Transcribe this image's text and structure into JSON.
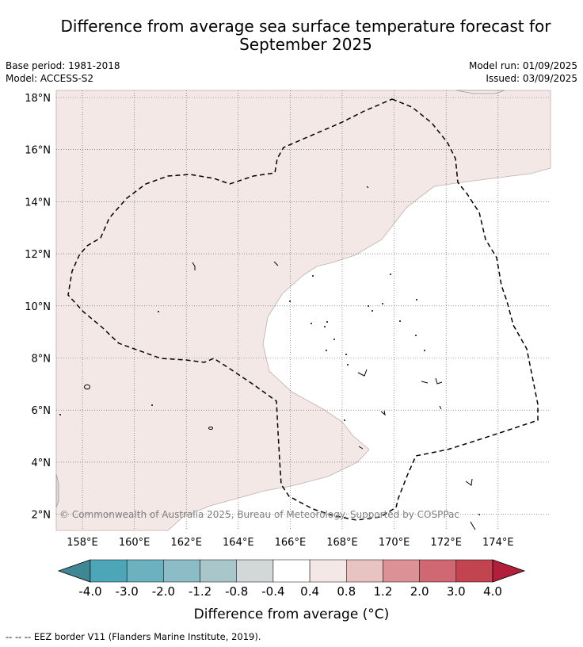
{
  "title": "Difference from average sea surface temperature forecast for September 2025",
  "meta": {
    "base_period": "Base period: 1981-2018",
    "model": "Model: ACCESS-S2",
    "model_run": "Model run: 01/09/2025",
    "issued": "Issued: 03/09/2025"
  },
  "map": {
    "lon_ticks": [
      "158°E",
      "160°E",
      "162°E",
      "164°E",
      "166°E",
      "168°E",
      "170°E",
      "172°E",
      "174°E"
    ],
    "lat_ticks": [
      "18°N",
      "16°N",
      "14°N",
      "12°N",
      "10°N",
      "8°N",
      "6°N",
      "4°N",
      "2°N"
    ],
    "watermark": "© Commonwealth of Australia 2025, Bureau of Meteorology. Supported by COSPPac",
    "colors": {
      "anomaly_0_4_to_0_8": "#f4e8e7",
      "neutral": "#ffffff",
      "eez_border": "#000000"
    }
  },
  "colorbar": {
    "tick_labels": [
      "-4.0",
      "-3.0",
      "-2.0",
      "-1.2",
      "-0.8",
      "-0.4",
      "0.4",
      "0.8",
      "1.2",
      "2.0",
      "3.0",
      "4.0"
    ],
    "colors": [
      "#4da6b8",
      "#6bb1c0",
      "#8cbcc6",
      "#a9c7cb",
      "#d2d7d8",
      "#ffffff",
      "#f4e8e7",
      "#e8c3c1",
      "#db9196",
      "#cf6873",
      "#c24451"
    ],
    "under_color": "#3f8893",
    "over_color": "#b31e3a",
    "label": "Difference from average (°C)"
  },
  "legend_note": "--  --  -- EEZ border V11 (Flanders Marine Institute, 2019)."
}
